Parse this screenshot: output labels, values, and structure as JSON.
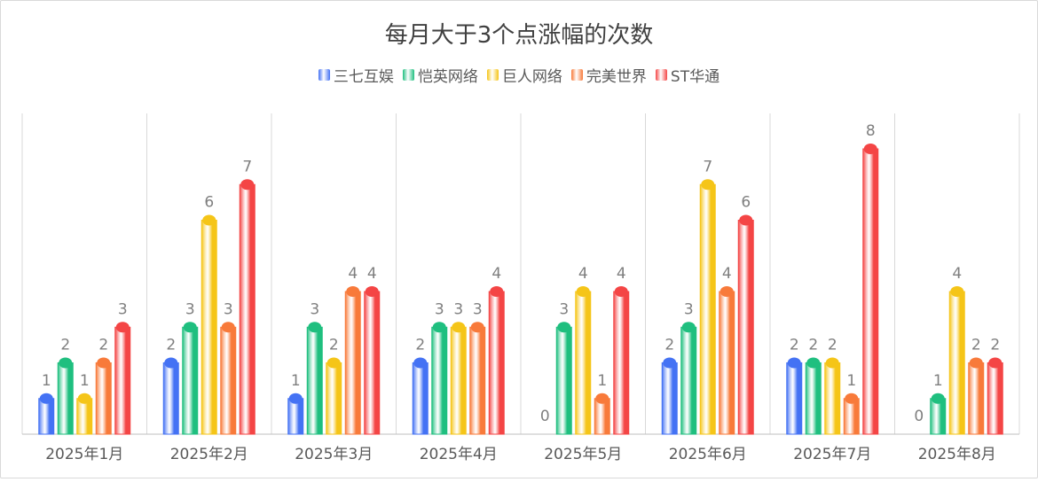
{
  "chart_data": {
    "type": "bar",
    "title": "每月大于3个点涨幅的次数",
    "categories": [
      "2025年1月",
      "2025年2月",
      "2025年3月",
      "2025年4月",
      "2025年5月",
      "2025年6月",
      "2025年7月",
      "2025年8月"
    ],
    "series": [
      {
        "name": "三七互娱",
        "color": "#4472f4",
        "values": [
          1,
          2,
          1,
          2,
          0,
          2,
          2,
          0
        ]
      },
      {
        "name": "恺英网络",
        "color": "#1fbf7f",
        "values": [
          2,
          3,
          3,
          3,
          3,
          3,
          2,
          1
        ]
      },
      {
        "name": "巨人网络",
        "color": "#f5c518",
        "values": [
          1,
          6,
          2,
          3,
          4,
          7,
          2,
          4
        ]
      },
      {
        "name": "完美世界",
        "color": "#f87a3a",
        "values": [
          2,
          3,
          4,
          3,
          1,
          4,
          1,
          2
        ]
      },
      {
        "name": "ST华通",
        "color": "#f44545",
        "values": [
          3,
          7,
          4,
          4,
          4,
          6,
          8,
          2
        ]
      }
    ],
    "ylim": [
      0,
      8
    ],
    "grid": "vertical",
    "legend": "top-center",
    "data_labels": true
  }
}
